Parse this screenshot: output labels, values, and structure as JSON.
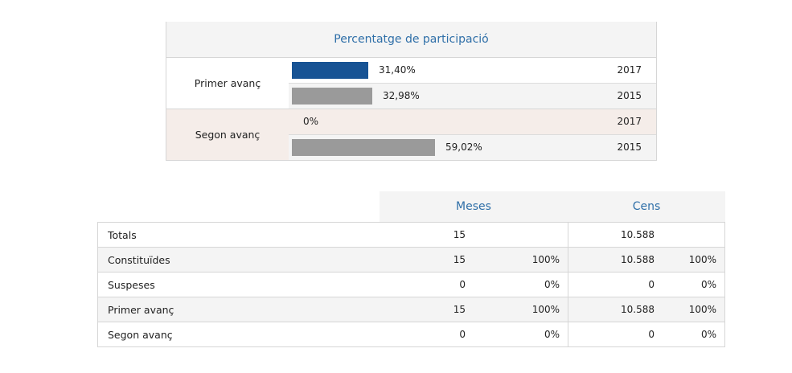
{
  "participation": {
    "title": "Percentatge de participació",
    "colors": {
      "current": "#175394",
      "previous": "#9a9a9a"
    },
    "groups": [
      {
        "label": "Primer avanç",
        "rows": [
          {
            "pct_label": "31,40%",
            "value": 31.4,
            "year": "2017",
            "series": "current"
          },
          {
            "pct_label": "32,98%",
            "value": 32.98,
            "year": "2015",
            "series": "previous"
          }
        ]
      },
      {
        "label": "Segon avanç",
        "rows": [
          {
            "pct_label": "0%",
            "value": 0,
            "year": "2017",
            "series": "current"
          },
          {
            "pct_label": "59,02%",
            "value": 59.02,
            "year": "2015",
            "series": "previous"
          }
        ]
      }
    ]
  },
  "stats": {
    "headers": {
      "meses": "Meses",
      "cens": "Cens"
    },
    "rows": [
      {
        "label": "Totals",
        "meses": "15",
        "meses_pct": "",
        "cens": "10.588",
        "cens_pct": ""
      },
      {
        "label": "Constituïdes",
        "meses": "15",
        "meses_pct": "100%",
        "cens": "10.588",
        "cens_pct": "100%"
      },
      {
        "label": "Suspeses",
        "meses": "0",
        "meses_pct": "0%",
        "cens": "0",
        "cens_pct": "0%"
      },
      {
        "label": "Primer avanç",
        "meses": "15",
        "meses_pct": "100%",
        "cens": "10.588",
        "cens_pct": "100%"
      },
      {
        "label": "Segon avanç",
        "meses": "0",
        "meses_pct": "0%",
        "cens": "0",
        "cens_pct": "0%"
      }
    ]
  }
}
